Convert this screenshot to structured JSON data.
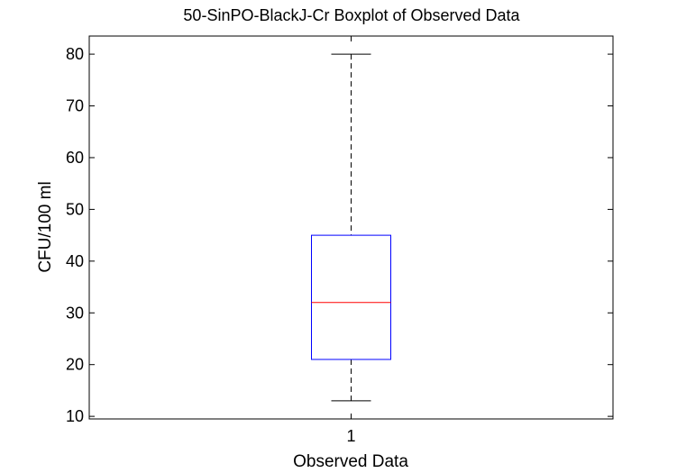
{
  "chart_data": {
    "type": "boxplot",
    "title": "50-SinPO-BlackJ-Cr Boxplot of Observed Data",
    "xlabel": "Observed Data",
    "ylabel": "CFU/100 ml",
    "categories": [
      "1"
    ],
    "ylim": [
      9.5,
      83.5
    ],
    "yticks": [
      10,
      20,
      30,
      40,
      50,
      60,
      70,
      80
    ],
    "boxes": [
      {
        "category": "1",
        "whisker_low": 13,
        "q1": 21,
        "median": 32,
        "q3": 45,
        "whisker_high": 80
      }
    ],
    "grid": false,
    "legend": "none",
    "colors": {
      "box": "#0000ff",
      "median": "#ff0000",
      "whisker": "#000000",
      "axes": "#000000"
    }
  }
}
